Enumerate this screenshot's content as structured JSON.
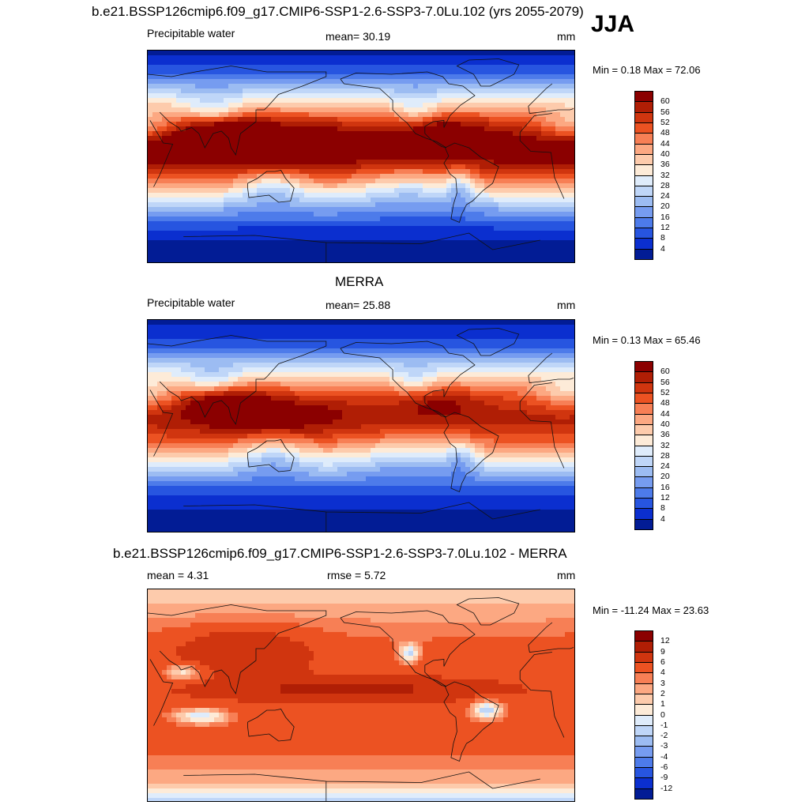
{
  "season": "JJA",
  "panels": [
    {
      "id": "model",
      "title": "b.e21.BSSP126cmip6.f09_g17.CMIP6-SSP1-2.6-SSP3-7.0Lu.102 (yrs 2055-2079)",
      "left_label": "Precipitable water",
      "center_label": "mean=  30.19",
      "units": "mm",
      "minmax": "Min =   0.18 Max =  72.06",
      "field": "model",
      "colorbar": {
        "ticks": [
          "60",
          "56",
          "52",
          "48",
          "44",
          "40",
          "36",
          "32",
          "28",
          "24",
          "20",
          "16",
          "12",
          "8",
          "4"
        ],
        "colors": [
          "#8b0000",
          "#b01e05",
          "#d0350f",
          "#ec5222",
          "#f77f55",
          "#fca882",
          "#fdcbac",
          "#fdebd8",
          "#dfecfb",
          "#bfd6f8",
          "#9cbcf2",
          "#769cf0",
          "#4d7bea",
          "#2755e0",
          "#0b2fcf",
          "#021c95"
        ]
      }
    },
    {
      "id": "obs",
      "title": "MERRA",
      "left_label": "Precipitable water",
      "center_label": "mean=  25.88",
      "units": "mm",
      "minmax": "Min =   0.13 Max =  65.46",
      "field": "obs",
      "colorbar": {
        "ticks": [
          "60",
          "56",
          "52",
          "48",
          "44",
          "40",
          "36",
          "32",
          "28",
          "24",
          "20",
          "16",
          "12",
          "8",
          "4"
        ],
        "colors": [
          "#8b0000",
          "#b01e05",
          "#d0350f",
          "#ec5222",
          "#f77f55",
          "#fca882",
          "#fdcbac",
          "#fdebd8",
          "#dfecfb",
          "#bfd6f8",
          "#9cbcf2",
          "#769cf0",
          "#4d7bea",
          "#2755e0",
          "#0b2fcf",
          "#021c95"
        ]
      }
    },
    {
      "id": "diff",
      "title": "b.e21.BSSP126cmip6.f09_g17.CMIP6-SSP1-2.6-SSP3-7.0Lu.102 - MERRA",
      "left_label": "mean =   4.31",
      "center_label": "rmse =   5.72",
      "units": "mm",
      "minmax": "Min = -11.24 Max =  23.63",
      "field": "diff",
      "colorbar": {
        "ticks": [
          "12",
          "9",
          "6",
          "4",
          "3",
          "2",
          "1",
          "0",
          "-1",
          "-2",
          "-3",
          "-4",
          "-6",
          "-9",
          "-12"
        ],
        "colors": [
          "#8b0000",
          "#b01e05",
          "#d0350f",
          "#ec5222",
          "#f77f55",
          "#fca882",
          "#fdcbac",
          "#fdebd8",
          "#dfecfb",
          "#bfd6f8",
          "#9cbcf2",
          "#769cf0",
          "#4d7bea",
          "#2755e0",
          "#0b2fcf",
          "#021c95"
        ]
      }
    }
  ]
}
